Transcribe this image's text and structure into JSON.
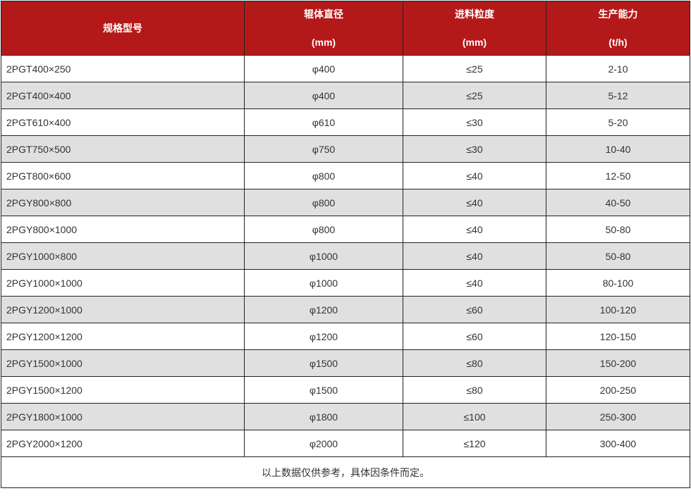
{
  "table": {
    "columns": [
      {
        "title": "规格型号",
        "unit": ""
      },
      {
        "title": "辊体直径",
        "unit": "(mm)"
      },
      {
        "title": "进料粒度",
        "unit": "(mm)"
      },
      {
        "title": "生产能力",
        "unit": "(t/h)"
      }
    ],
    "column_keys": [
      "model",
      "roller-diameter",
      "feed-size",
      "capacity"
    ],
    "rows": [
      [
        "2PGT400×250",
        "φ400",
        "≤25",
        "2-10"
      ],
      [
        "2PGT400×400",
        "φ400",
        "≤25",
        "5-12"
      ],
      [
        "2PGT610×400",
        "φ610",
        "≤30",
        "5-20"
      ],
      [
        "2PGT750×500",
        "φ750",
        "≤30",
        "10-40"
      ],
      [
        "2PGT800×600",
        "φ800",
        "≤40",
        "12-50"
      ],
      [
        "2PGY800×800",
        "φ800",
        "≤40",
        "40-50"
      ],
      [
        "2PGY800×1000",
        "φ800",
        "≤40",
        "50-80"
      ],
      [
        "2PGY1000×800",
        "φ1000",
        "≤40",
        "50-80"
      ],
      [
        "2PGY1000×1000",
        "φ1000",
        "≤40",
        "80-100"
      ],
      [
        "2PGY1200×1000",
        "φ1200",
        "≤60",
        "100-120"
      ],
      [
        "2PGY1200×1200",
        "φ1200",
        "≤60",
        "120-150"
      ],
      [
        "2PGY1500×1000",
        "φ1500",
        "≤80",
        "150-200"
      ],
      [
        "2PGY1500×1200",
        "φ1500",
        "≤80",
        "200-250"
      ],
      [
        "2PGY1800×1000",
        "φ1800",
        "≤100",
        "250-300"
      ],
      [
        "2PGY2000×1200",
        "φ2000",
        "≤120",
        "300-400"
      ]
    ],
    "footer_note": "以上数据仅供参考，具体因条件而定。"
  },
  "colors": {
    "header_bg": "#b41919",
    "header_text": "#ffffff",
    "alt_row_bg": "#e0e0e0",
    "body_text": "#333333",
    "border": "#222222"
  }
}
